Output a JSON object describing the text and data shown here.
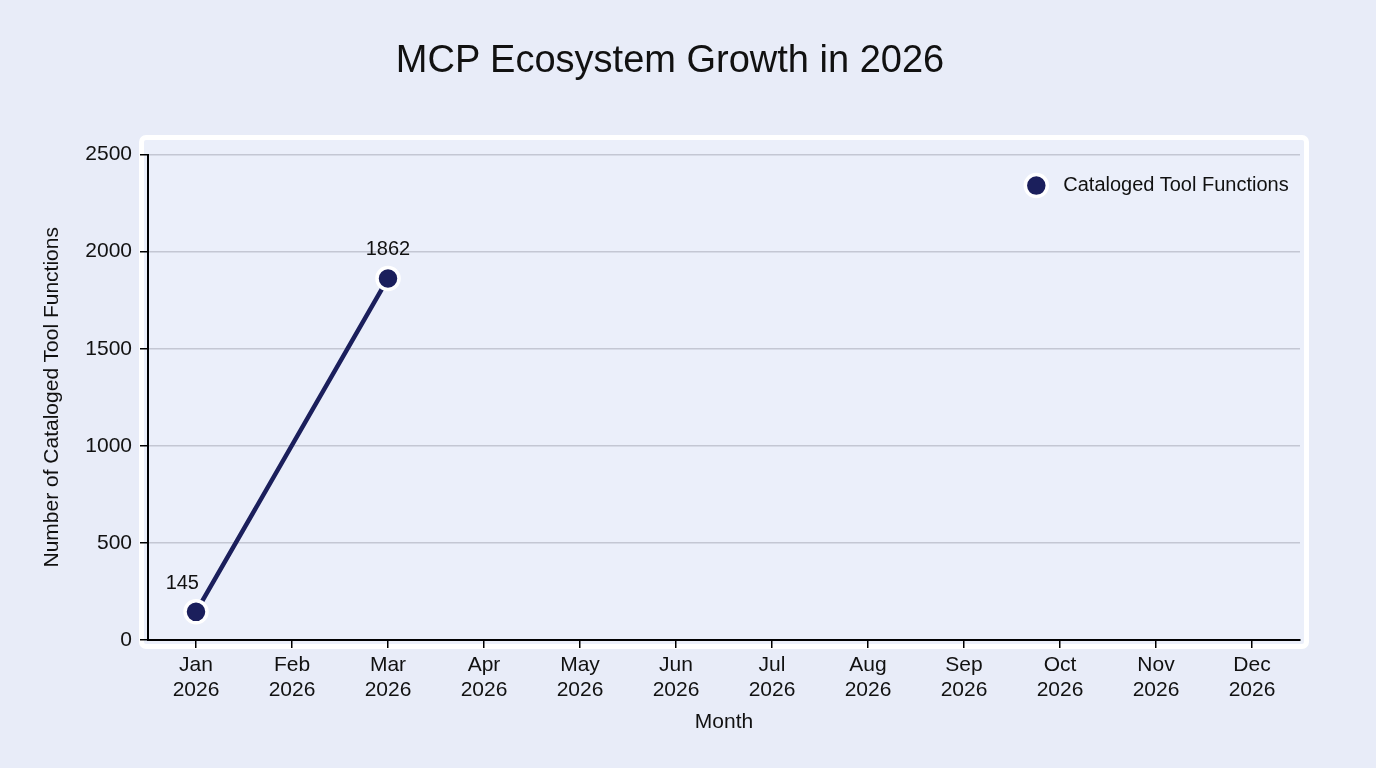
{
  "chart_data": {
    "type": "line",
    "title": "MCP Ecosystem Growth in 2026",
    "xlabel": "Month",
    "ylabel": "Number of Cataloged Tool Functions",
    "categories": [
      "Jan 2026",
      "Feb 2026",
      "Mar 2026",
      "Apr 2026",
      "May 2026",
      "Jun 2026",
      "Jul 2026",
      "Aug 2026",
      "Sep 2026",
      "Oct 2026",
      "Nov 2026",
      "Dec 2026"
    ],
    "series": [
      {
        "name": "Cataloged Tool Functions",
        "color": "#1b1f5c",
        "values": [
          145,
          null,
          1862,
          null,
          null,
          null,
          null,
          null,
          null,
          null,
          null,
          null
        ]
      }
    ],
    "ylim": [
      0,
      2500
    ],
    "yticks": [
      0,
      500,
      1000,
      1500,
      2000,
      2500
    ],
    "grid": "y",
    "legend": "top right",
    "marker": "circle",
    "data_labels": true
  }
}
